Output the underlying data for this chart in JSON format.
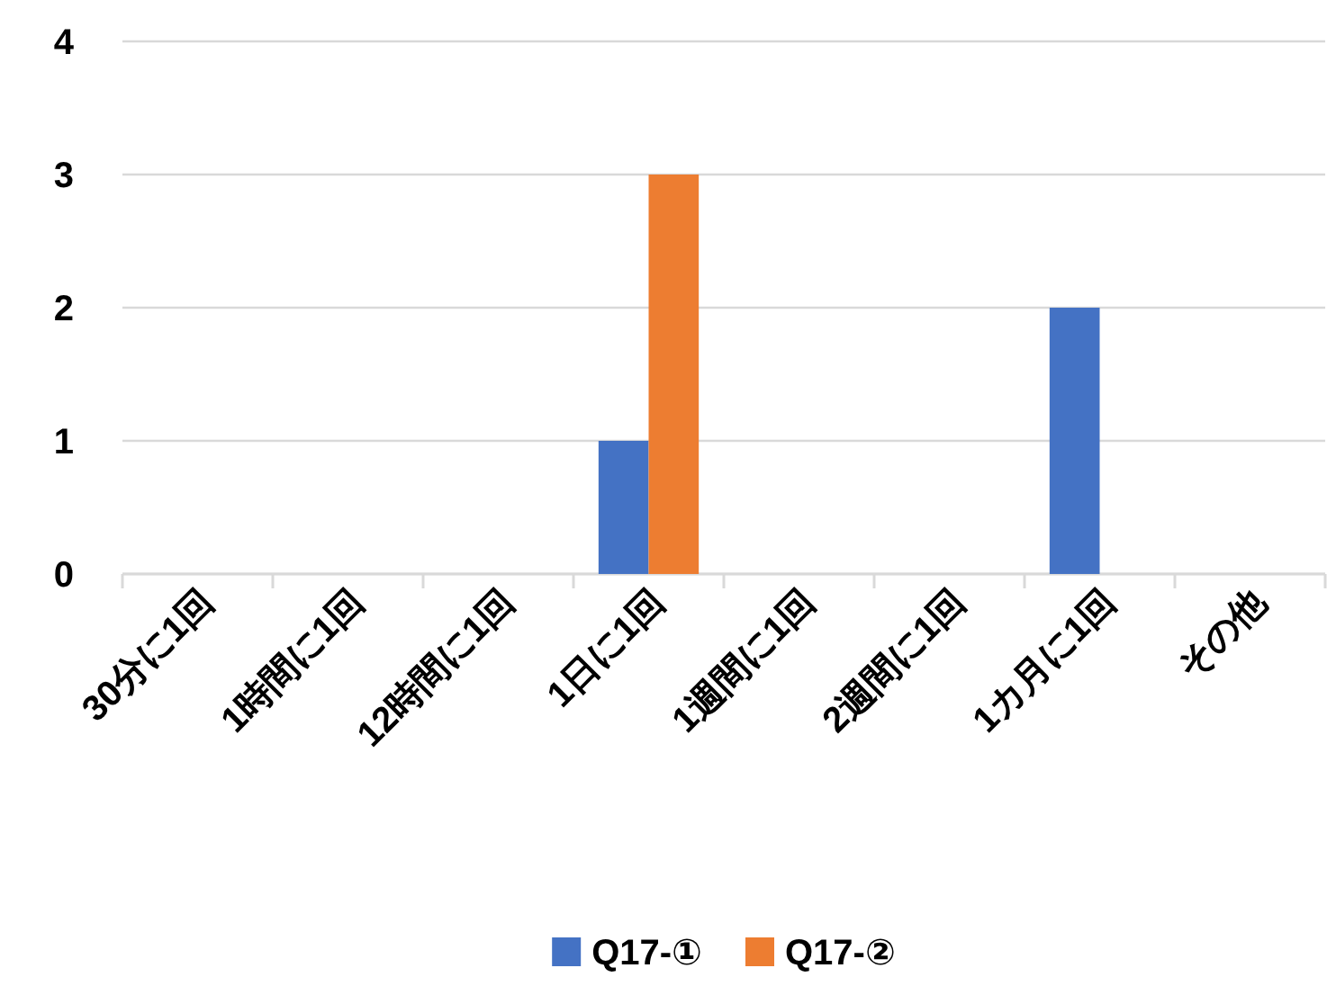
{
  "chart_data": {
    "type": "bar",
    "categories": [
      "30分に1回",
      "1時間に1回",
      "12時間に1回",
      "1日に1回",
      "1週間に1回",
      "2週間に1回",
      "1カ月に1回",
      "その他"
    ],
    "series": [
      {
        "name": "Q17-①",
        "color": "#4472c4",
        "values": [
          0,
          0,
          0,
          1,
          0,
          0,
          2,
          0
        ]
      },
      {
        "name": "Q17-②",
        "color": "#ed7d31",
        "values": [
          0,
          0,
          0,
          3,
          0,
          0,
          0,
          0
        ]
      }
    ],
    "ylim": [
      0,
      4
    ],
    "yticks": [
      0,
      1,
      2,
      3,
      4
    ],
    "grid": "y",
    "legend": "bottom"
  }
}
